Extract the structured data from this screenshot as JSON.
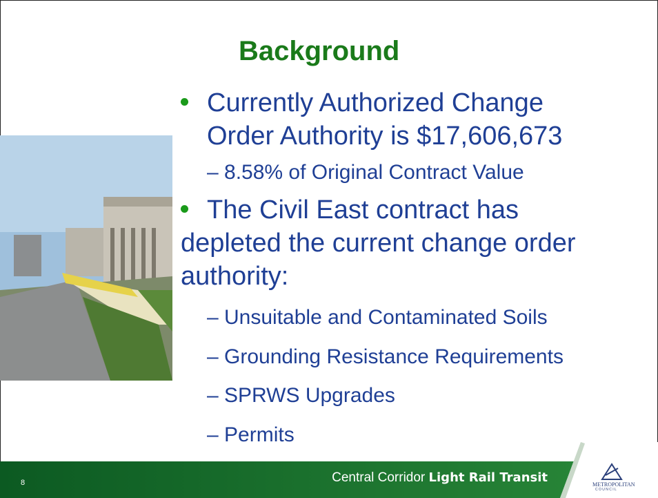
{
  "slide": {
    "title": "Background",
    "bullets": [
      {
        "lines": [
          "Currently Authorized Change",
          "Order Authority is $17,606,673"
        ],
        "subs": [
          "– 8.58% of Original Contract Value"
        ]
      },
      {
        "lines": [
          "The Civil East contract has",
          "depleted the current change order",
          "authority:"
        ],
        "subs": [
          "– Unsuitable and Contaminated Soils",
          "– Grounding Resistance Requirements",
          "– SPRWS Upgrades",
          "– Permits"
        ]
      }
    ],
    "footer": {
      "page_number": "8",
      "tagline": "Central Corridor",
      "tagline_bold": "Light Rail Transit",
      "logo_top": "METROPOLITAN",
      "logo_bottom": "C O U N C I L"
    }
  }
}
